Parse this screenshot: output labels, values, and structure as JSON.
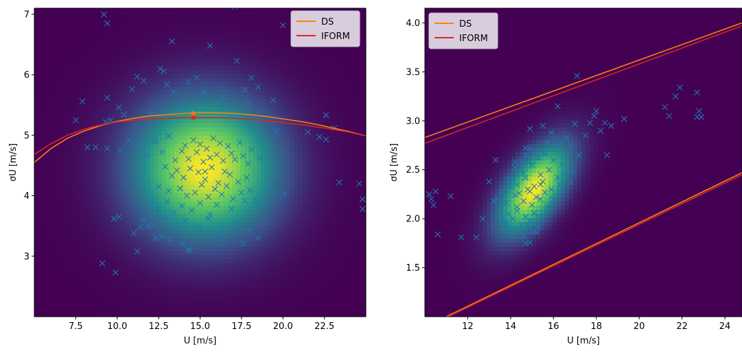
{
  "chart_data": [
    {
      "type": "scatter",
      "subtype": "density-heatmap-with-contours",
      "xlabel": "U [m/s]",
      "ylabel": "σU [m/s]",
      "xlim": [
        5.0,
        25.0
      ],
      "ylim": [
        2.0,
        7.1
      ],
      "xticks": [
        7.5,
        10.0,
        12.5,
        15.0,
        17.5,
        20.0,
        22.5
      ],
      "xtick_labels": [
        "7.5",
        "10.0",
        "12.5",
        "15.0",
        "17.5",
        "20.0",
        "22.5"
      ],
      "yticks": [
        3,
        4,
        5,
        6,
        7
      ],
      "ytick_labels": [
        "3",
        "4",
        "5",
        "6",
        "7"
      ],
      "grid": false,
      "legend_position": "top-right",
      "colormap": "viridis",
      "density": {
        "peak": [
          15.3,
          4.45
        ],
        "sigma": [
          2.8,
          0.75
        ]
      },
      "series": [
        {
          "name": "DS",
          "color": "#ff7f0e",
          "x": [
            5.0,
            6.0,
            7.0,
            8.0,
            9.0,
            10.0,
            11.0,
            12.0,
            13.0,
            14.0,
            15.0,
            16.0,
            17.0,
            18.0,
            19.0,
            20.0,
            21.0,
            22.0,
            23.0,
            24.0,
            25.0
          ],
          "y": [
            4.55,
            4.78,
            4.95,
            5.07,
            5.16,
            5.23,
            5.28,
            5.32,
            5.34,
            5.36,
            5.37,
            5.37,
            5.36,
            5.34,
            5.31,
            5.27,
            5.23,
            5.18,
            5.12,
            5.06,
            4.99
          ]
        },
        {
          "name": "IFORM",
          "color": "#d62728",
          "x": [
            5.0,
            6.0,
            7.0,
            8.0,
            9.0,
            10.0,
            11.0,
            12.0,
            13.0,
            14.0,
            15.0,
            16.0,
            17.0,
            18.0,
            19.0,
            20.0,
            21.0,
            22.0,
            23.0,
            24.0,
            25.0
          ],
          "y": [
            4.68,
            4.86,
            5.0,
            5.1,
            5.17,
            5.22,
            5.25,
            5.27,
            5.28,
            5.29,
            5.29,
            5.29,
            5.28,
            5.26,
            5.24,
            5.21,
            5.18,
            5.14,
            5.1,
            5.05,
            4.99
          ]
        }
      ],
      "marked_points": [
        {
          "label": "★",
          "x": 14.6,
          "y": 5.36,
          "color": "#ff7f0e"
        },
        {
          "label": "★",
          "x": 14.6,
          "y": 5.3,
          "color": "#d62728"
        }
      ],
      "scatter_points": {
        "marker": "x",
        "color": "#1f77b4",
        "x": [
          9.2,
          9.4,
          13.3,
          15.6,
          17.1,
          20.0,
          7.9,
          11.2,
          12.6,
          12.8,
          17.2,
          18.1,
          9.4,
          10.1,
          10.9,
          11.6,
          13.0,
          13.4,
          14.3,
          14.8,
          15.2,
          16.4,
          17.7,
          18.5,
          19.4,
          21.5,
          7.5,
          9.3,
          9.6,
          10.4,
          12.1,
          13.0,
          13.7,
          17.9,
          18.4,
          19.6,
          22.6,
          23.1,
          22.2,
          8.7,
          9.4,
          10.2,
          10.7,
          11.3,
          11.8,
          12.3,
          12.7,
          13.1,
          13.5,
          13.9,
          14.1,
          14.3,
          14.6,
          14.8,
          15.0,
          15.2,
          15.4,
          15.6,
          15.8,
          16.0,
          16.2,
          16.4,
          16.7,
          16.9,
          17.1,
          17.4,
          17.6,
          17.9,
          18.1,
          18.6,
          12.9,
          13.3,
          13.6,
          14.0,
          14.4,
          14.9,
          15.3,
          15.7,
          16.1,
          16.5,
          16.8,
          17.3,
          17.8,
          12.5,
          13.1,
          13.8,
          14.2,
          14.7,
          15.1,
          15.5,
          15.9,
          16.3,
          16.6,
          17.0,
          17.5,
          18.0,
          18.4,
          19.2,
          20.1,
          12.0,
          12.4,
          13.0,
          13.4,
          13.9,
          14.5,
          15.0,
          15.6,
          16.0,
          16.9,
          17.7,
          18.7,
          19.0,
          11.6,
          12.2,
          12.8,
          13.5,
          14.1,
          14.9,
          15.5,
          16.2,
          17.2,
          10.1,
          11.0,
          11.9,
          12.7,
          13.2,
          14.0,
          16.3,
          17.9,
          9.8,
          11.4,
          12.3,
          14.4,
          17.6,
          18.5,
          9.1,
          9.9,
          14.3,
          11.2,
          22.6,
          23.4,
          24.6,
          24.8,
          24.8,
          8.2,
          15.3
        ],
        "y": [
          7.0,
          6.85,
          6.55,
          6.48,
          7.12,
          6.82,
          5.56,
          5.97,
          6.1,
          6.06,
          6.23,
          5.95,
          5.62,
          5.46,
          5.76,
          5.9,
          5.84,
          5.72,
          5.88,
          5.95,
          5.72,
          5.63,
          5.75,
          5.8,
          5.58,
          5.05,
          5.25,
          5.22,
          5.25,
          5.34,
          5.36,
          5.38,
          5.47,
          5.52,
          5.24,
          5.07,
          5.33,
          5.12,
          4.97,
          4.8,
          4.78,
          4.75,
          4.92,
          4.85,
          4.66,
          4.9,
          4.72,
          4.99,
          4.59,
          4.74,
          4.83,
          4.61,
          4.92,
          4.72,
          4.85,
          4.56,
          4.78,
          4.63,
          4.95,
          4.68,
          4.87,
          4.58,
          4.82,
          4.7,
          4.6,
          4.88,
          4.66,
          4.53,
          4.76,
          4.62,
          4.48,
          4.33,
          4.42,
          4.3,
          4.45,
          4.39,
          4.27,
          4.47,
          4.21,
          4.4,
          4.35,
          4.23,
          4.3,
          4.15,
          4.08,
          4.12,
          4.0,
          4.05,
          4.18,
          3.98,
          4.11,
          4.02,
          4.16,
          3.95,
          4.05,
          4.09,
          3.92,
          4.13,
          4.03,
          3.86,
          3.78,
          3.9,
          3.72,
          3.83,
          3.76,
          3.88,
          3.69,
          3.85,
          3.78,
          3.92,
          3.81,
          3.9,
          3.6,
          3.52,
          3.65,
          3.44,
          3.58,
          3.48,
          3.62,
          3.39,
          3.55,
          3.65,
          3.38,
          3.5,
          3.32,
          3.28,
          3.2,
          3.28,
          3.42,
          3.62,
          3.48,
          3.3,
          3.1,
          3.21,
          3.3,
          2.88,
          2.73,
          3.1,
          3.08,
          4.93,
          4.22,
          4.2,
          3.78,
          3.94,
          4.8,
          4.4
        ]
      }
    },
    {
      "type": "scatter",
      "subtype": "density-heatmap-with-contours",
      "xlabel": "U [m/s]",
      "ylabel": "σU [m/s]",
      "xlim": [
        10.0,
        24.8
      ],
      "ylim": [
        1.0,
        4.15
      ],
      "xticks": [
        12,
        14,
        16,
        18,
        20,
        22,
        24
      ],
      "xtick_labels": [
        "12",
        "14",
        "16",
        "18",
        "20",
        "22",
        "24"
      ],
      "yticks": [
        1.5,
        2.0,
        2.5,
        3.0,
        3.5,
        4.0
      ],
      "ytick_labels": [
        "1.5",
        "2.0",
        "2.5",
        "3.0",
        "3.5",
        "4.0"
      ],
      "grid": false,
      "legend_position": "top-left",
      "colormap": "viridis",
      "density": {
        "peak": [
          15.1,
          2.3
        ],
        "sigma": [
          1.1,
          0.3
        ],
        "rho": 0.6
      },
      "series": [
        {
          "name": "DS",
          "color": "#ff7f0e",
          "segments": [
            {
              "x": [
                10.0,
                24.8
              ],
              "y": [
                2.83,
                4.0
              ]
            },
            {
              "x": [
                11.0,
                24.8
              ],
              "y": [
                1.0,
                2.47
              ]
            }
          ]
        },
        {
          "name": "IFORM",
          "color": "#d62728",
          "segments": [
            {
              "x": [
                10.0,
                24.8
              ],
              "y": [
                2.77,
                3.97
              ]
            },
            {
              "x": [
                11.0,
                24.8
              ],
              "y": [
                0.99,
                2.45
              ]
            }
          ]
        }
      ],
      "scatter_points": {
        "marker": "x",
        "color": "#1f77b4",
        "x": [
          17.1,
          16.2,
          15.5,
          14.9,
          15.9,
          16.6,
          17.0,
          16.3,
          15.7,
          15.2,
          14.7,
          14.5,
          14.9,
          15.3,
          15.6,
          16.0,
          16.4,
          16.9,
          14.2,
          14.6,
          15.0,
          15.4,
          15.8,
          16.2,
          16.5,
          16.8,
          13.9,
          14.3,
          14.7,
          15.1,
          15.5,
          15.9,
          16.3,
          13.6,
          14.0,
          14.4,
          14.8,
          15.2,
          15.6,
          16.0,
          13.4,
          13.8,
          14.2,
          14.6,
          15.0,
          15.4,
          15.8,
          13.5,
          13.9,
          14.3,
          14.7,
          15.1,
          15.5,
          13.7,
          14.1,
          14.5,
          14.9,
          15.3,
          13.9,
          14.4,
          14.8,
          15.2,
          14.0,
          14.6,
          15.0,
          13.8,
          14.3,
          14.9,
          15.4,
          13.3,
          13.0,
          14.2,
          14.7,
          13.2,
          12.7,
          14.7,
          14.9,
          11.7,
          12.4,
          10.5,
          10.2,
          10.3,
          10.6,
          10.4,
          11.2,
          13.6,
          17.2,
          17.7,
          18.0,
          18.4,
          18.7,
          18.2,
          17.5,
          16.8,
          18.5,
          19.3,
          21.2,
          21.7,
          21.9,
          22.7,
          22.8,
          22.7,
          22.9,
          21.4,
          17.9
        ],
        "y": [
          3.46,
          3.15,
          2.95,
          2.92,
          2.88,
          2.83,
          2.97,
          2.75,
          2.78,
          2.7,
          2.65,
          2.58,
          2.72,
          2.62,
          2.66,
          2.6,
          2.55,
          2.48,
          2.52,
          2.47,
          2.55,
          2.45,
          2.5,
          2.42,
          2.46,
          2.38,
          2.4,
          2.35,
          2.42,
          2.33,
          2.38,
          2.3,
          2.35,
          2.28,
          2.32,
          2.26,
          2.3,
          2.22,
          2.27,
          2.2,
          2.2,
          2.16,
          2.24,
          2.18,
          2.14,
          2.2,
          2.12,
          2.1,
          2.05,
          2.08,
          2.02,
          2.06,
          2.0,
          1.96,
          2.0,
          1.94,
          1.98,
          1.92,
          1.9,
          1.88,
          1.93,
          1.86,
          1.84,
          1.82,
          1.87,
          1.95,
          2.12,
          2.28,
          2.35,
          2.6,
          2.38,
          2.58,
          2.72,
          2.18,
          2.0,
          1.75,
          1.76,
          1.81,
          1.81,
          2.28,
          2.25,
          2.2,
          1.84,
          2.14,
          2.23,
          2.02,
          2.65,
          2.98,
          3.1,
          2.98,
          2.95,
          2.9,
          2.85,
          2.75,
          2.65,
          3.02,
          3.14,
          3.25,
          3.34,
          3.29,
          3.1,
          3.04,
          3.04,
          3.05,
          3.05
        ]
      }
    }
  ]
}
